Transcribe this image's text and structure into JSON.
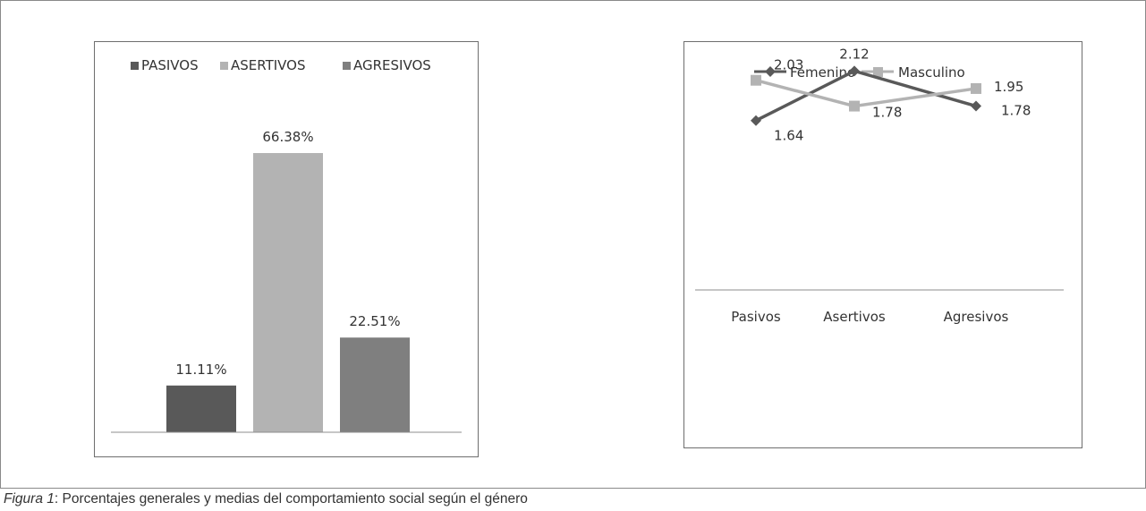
{
  "chart_data": [
    {
      "type": "bar",
      "categories": [
        "PASIVOS",
        "ASERTIVOS",
        "AGRESIVOS"
      ],
      "values": [
        11.11,
        66.38,
        22.51
      ],
      "value_labels": [
        "11.11%",
        "66.38%",
        "22.51%"
      ],
      "colors": [
        "#595959",
        "#b3b3b3",
        "#7f7f7f"
      ],
      "ylim": [
        0,
        80
      ],
      "grid": false,
      "legend_position": "top"
    },
    {
      "type": "line",
      "categories": [
        "Pasivos",
        "Asertivos",
        "Agresivos"
      ],
      "series": [
        {
          "name": "Femenino",
          "values": [
            1.64,
            2.12,
            1.78
          ],
          "labels": [
            "1.64",
            "2.12",
            "1.78"
          ],
          "color": "#595959",
          "marker": "diamond"
        },
        {
          "name": "Masculino",
          "values": [
            2.03,
            1.78,
            1.95
          ],
          "labels": [
            "2.03",
            "1.78",
            "1.95"
          ],
          "color": "#b3b3b3",
          "marker": "square"
        }
      ],
      "ylim": [
        0,
        2.4
      ],
      "grid": false,
      "legend_position": "top"
    }
  ],
  "caption": {
    "label": "Figura 1",
    "text": ": Porcentajes generales y medias del comportamiento social según el género"
  }
}
